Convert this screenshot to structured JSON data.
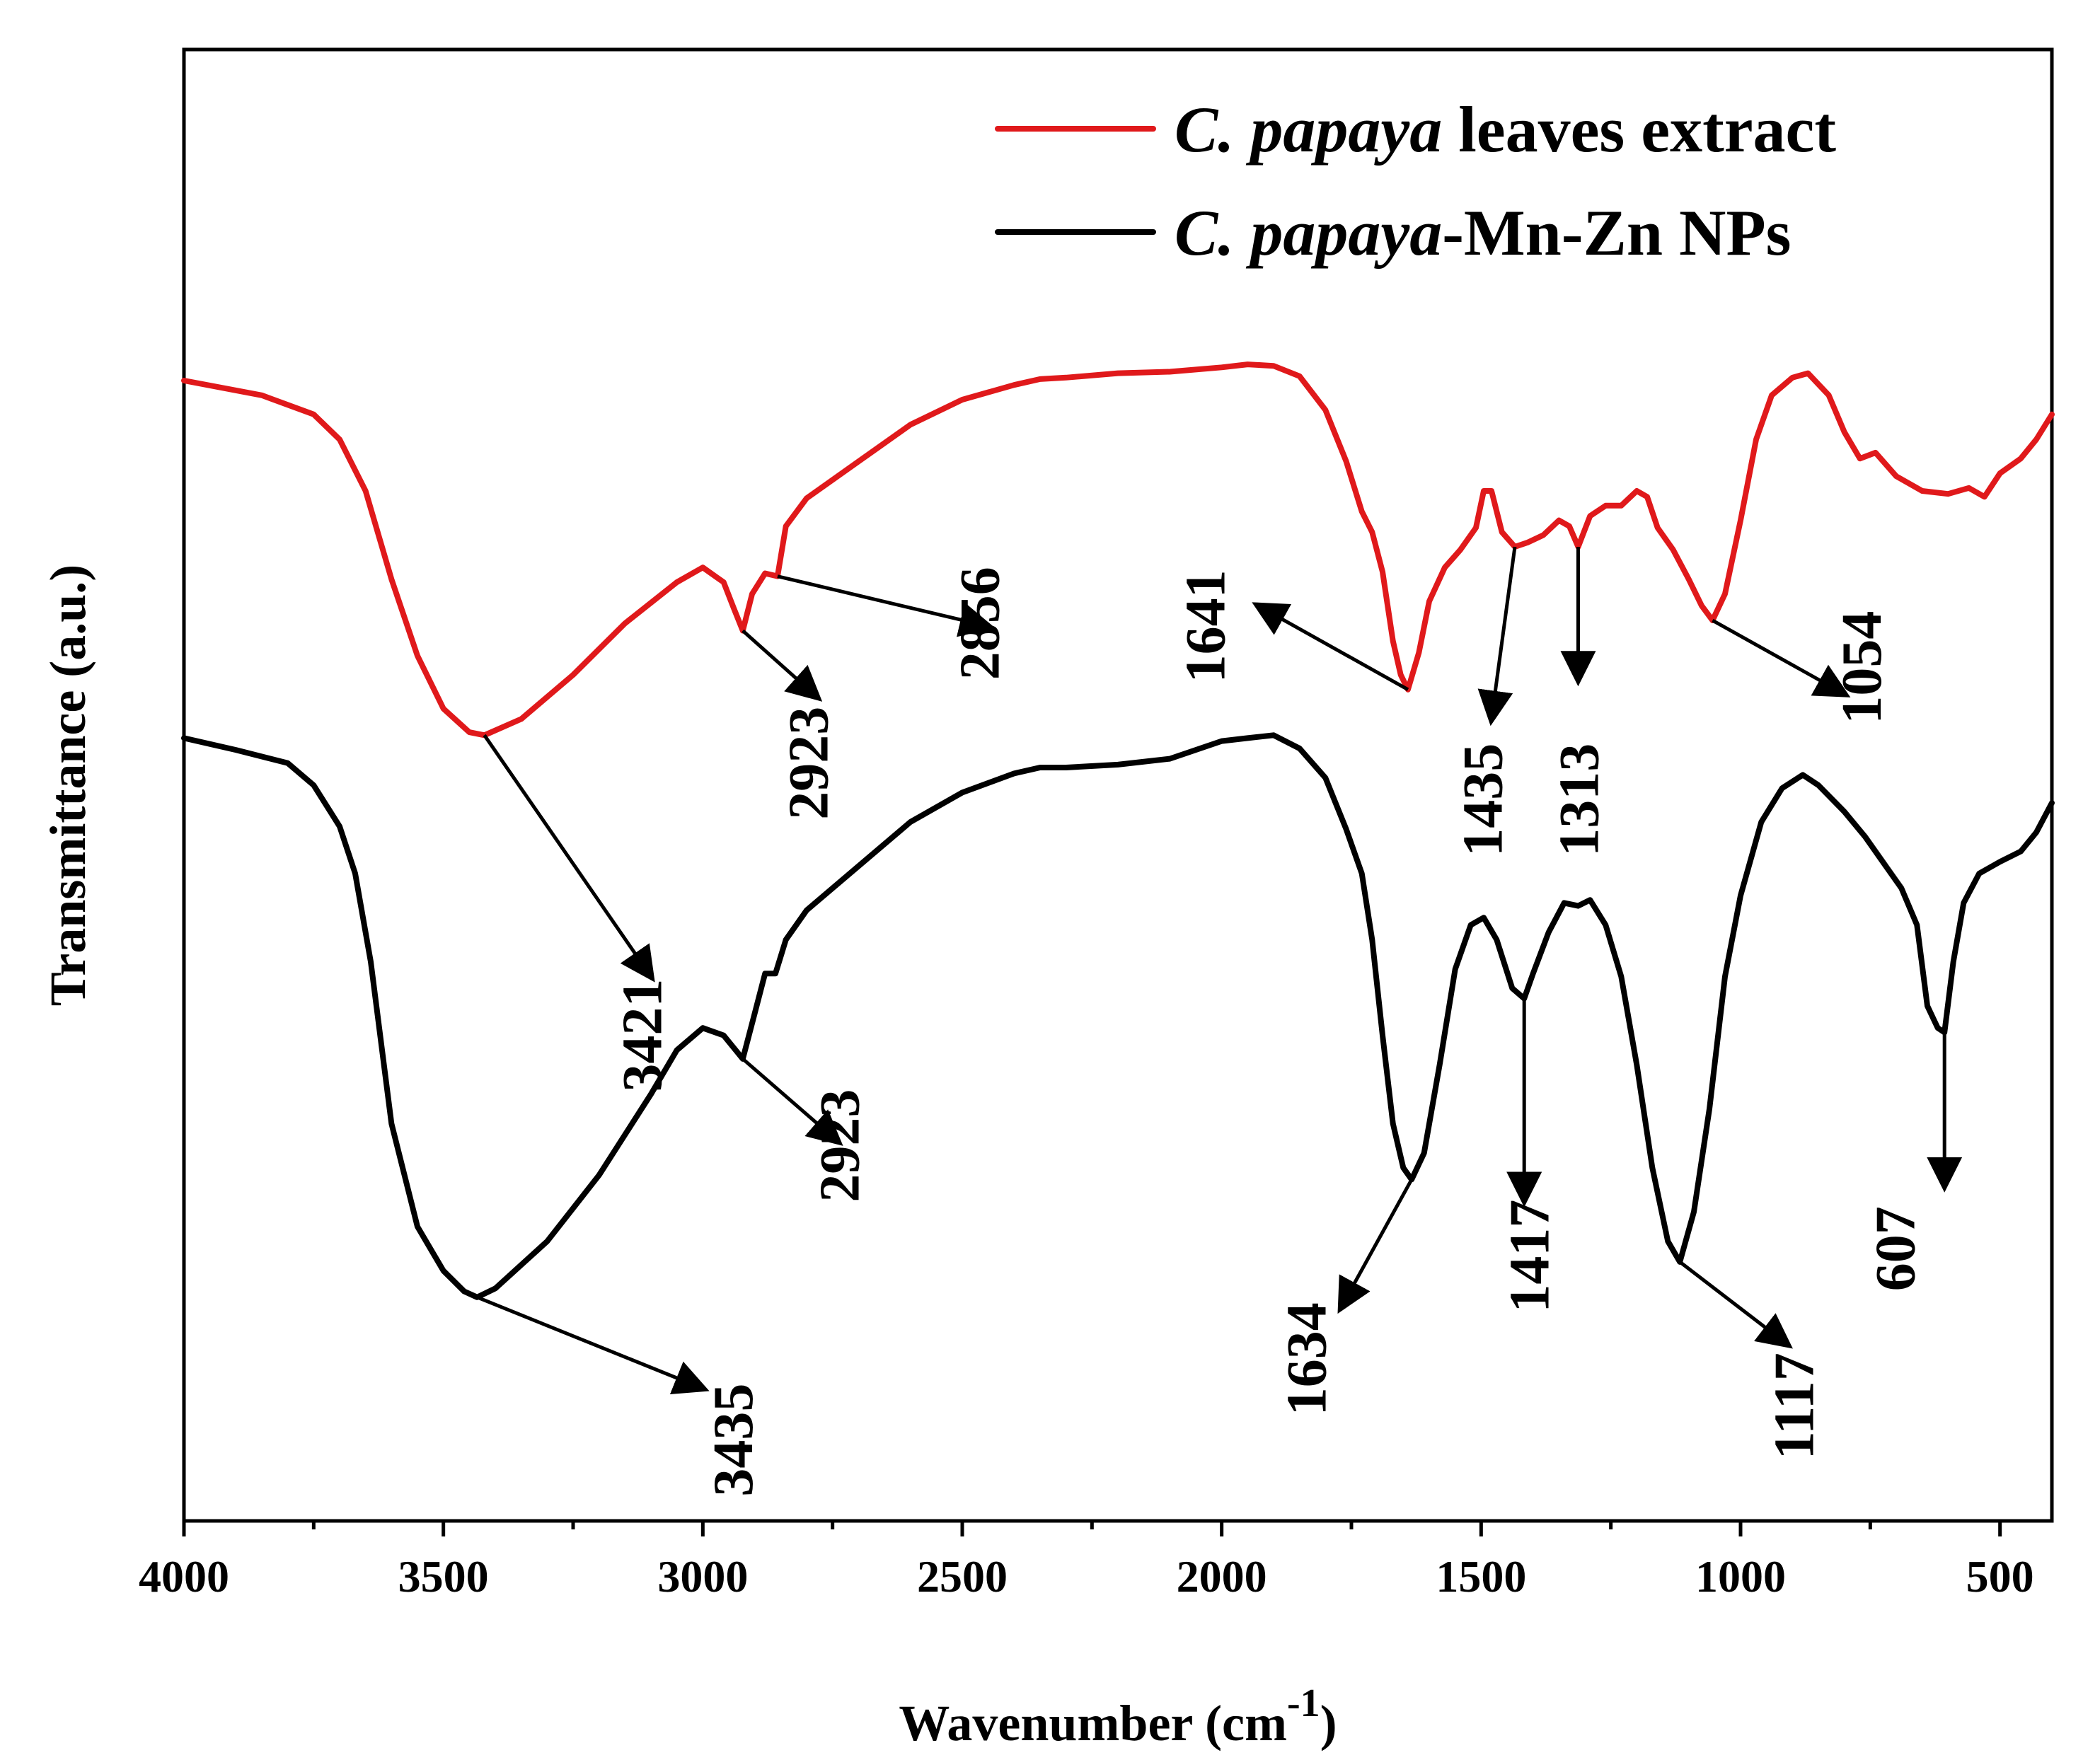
{
  "chart_data": {
    "type": "line",
    "title": "",
    "xlabel_main": "Wavenumber (cm",
    "xlabel_sup": "-1",
    "xlabel_close": ")",
    "ylabel": "Transmittance (a.u.)",
    "xlim": [
      4000,
      400
    ],
    "xticks": [
      "4000",
      "3500",
      "3000",
      "2500",
      "2000",
      "1500",
      "1000",
      "500"
    ],
    "legend": [
      {
        "italic": "C. papaya",
        "rest": " leaves extract",
        "color": "#e0191b"
      },
      {
        "italic": "C. papaya",
        "rest": "-Mn-Zn NPs",
        "color": "#000000"
      }
    ],
    "series": [
      {
        "name": "C. papaya leaves extract",
        "color": "#e0191b",
        "points": [
          [
            4000,
            0.775
          ],
          [
            3850,
            0.765
          ],
          [
            3750,
            0.752
          ],
          [
            3700,
            0.735
          ],
          [
            3650,
            0.7
          ],
          [
            3600,
            0.64
          ],
          [
            3550,
            0.588
          ],
          [
            3500,
            0.552
          ],
          [
            3450,
            0.536
          ],
          [
            3421,
            0.534
          ],
          [
            3350,
            0.545
          ],
          [
            3250,
            0.575
          ],
          [
            3150,
            0.61
          ],
          [
            3050,
            0.638
          ],
          [
            3000,
            0.648
          ],
          [
            2960,
            0.638
          ],
          [
            2940,
            0.62
          ],
          [
            2923,
            0.605
          ],
          [
            2905,
            0.63
          ],
          [
            2880,
            0.644
          ],
          [
            2856,
            0.642
          ],
          [
            2840,
            0.676
          ],
          [
            2800,
            0.695
          ],
          [
            2700,
            0.72
          ],
          [
            2600,
            0.745
          ],
          [
            2500,
            0.762
          ],
          [
            2400,
            0.772
          ],
          [
            2350,
            0.776
          ],
          [
            2300,
            0.777
          ],
          [
            2200,
            0.78
          ],
          [
            2100,
            0.781
          ],
          [
            2000,
            0.784
          ],
          [
            1950,
            0.786
          ],
          [
            1900,
            0.785
          ],
          [
            1850,
            0.778
          ],
          [
            1800,
            0.755
          ],
          [
            1760,
            0.72
          ],
          [
            1730,
            0.686
          ],
          [
            1710,
            0.672
          ],
          [
            1690,
            0.645
          ],
          [
            1670,
            0.598
          ],
          [
            1655,
            0.575
          ],
          [
            1641,
            0.565
          ],
          [
            1620,
            0.59
          ],
          [
            1600,
            0.625
          ],
          [
            1570,
            0.648
          ],
          [
            1540,
            0.66
          ],
          [
            1510,
            0.675
          ],
          [
            1495,
            0.7
          ],
          [
            1480,
            0.7
          ],
          [
            1460,
            0.672
          ],
          [
            1435,
            0.662
          ],
          [
            1410,
            0.665
          ],
          [
            1380,
            0.67
          ],
          [
            1350,
            0.68
          ],
          [
            1330,
            0.676
          ],
          [
            1313,
            0.662
          ],
          [
            1290,
            0.683
          ],
          [
            1260,
            0.69
          ],
          [
            1230,
            0.69
          ],
          [
            1200,
            0.7
          ],
          [
            1180,
            0.696
          ],
          [
            1160,
            0.675
          ],
          [
            1130,
            0.66
          ],
          [
            1100,
            0.64
          ],
          [
            1075,
            0.622
          ],
          [
            1054,
            0.612
          ],
          [
            1030,
            0.63
          ],
          [
            1000,
            0.68
          ],
          [
            970,
            0.735
          ],
          [
            940,
            0.765
          ],
          [
            900,
            0.777
          ],
          [
            870,
            0.78
          ],
          [
            830,
            0.765
          ],
          [
            800,
            0.74
          ],
          [
            770,
            0.722
          ],
          [
            740,
            0.726
          ],
          [
            700,
            0.71
          ],
          [
            650,
            0.7
          ],
          [
            600,
            0.698
          ],
          [
            560,
            0.702
          ],
          [
            530,
            0.696
          ],
          [
            500,
            0.712
          ],
          [
            460,
            0.722
          ],
          [
            430,
            0.735
          ],
          [
            400,
            0.752
          ]
        ]
      },
      {
        "name": "C. papaya-Mn-Zn NPs",
        "color": "#000000",
        "points": [
          [
            4000,
            0.532
          ],
          [
            3900,
            0.524
          ],
          [
            3800,
            0.515
          ],
          [
            3750,
            0.5
          ],
          [
            3700,
            0.472
          ],
          [
            3670,
            0.44
          ],
          [
            3640,
            0.38
          ],
          [
            3600,
            0.27
          ],
          [
            3550,
            0.2
          ],
          [
            3500,
            0.17
          ],
          [
            3460,
            0.156
          ],
          [
            3435,
            0.152
          ],
          [
            3400,
            0.158
          ],
          [
            3300,
            0.19
          ],
          [
            3200,
            0.235
          ],
          [
            3100,
            0.29
          ],
          [
            3050,
            0.32
          ],
          [
            3000,
            0.335
          ],
          [
            2960,
            0.33
          ],
          [
            2930,
            0.317
          ],
          [
            2923,
            0.314
          ],
          [
            2900,
            0.345
          ],
          [
            2880,
            0.372
          ],
          [
            2860,
            0.372
          ],
          [
            2840,
            0.395
          ],
          [
            2800,
            0.415
          ],
          [
            2700,
            0.445
          ],
          [
            2600,
            0.475
          ],
          [
            2500,
            0.495
          ],
          [
            2400,
            0.508
          ],
          [
            2350,
            0.512
          ],
          [
            2300,
            0.512
          ],
          [
            2200,
            0.514
          ],
          [
            2100,
            0.518
          ],
          [
            2050,
            0.524
          ],
          [
            2000,
            0.53
          ],
          [
            1950,
            0.532
          ],
          [
            1900,
            0.534
          ],
          [
            1850,
            0.525
          ],
          [
            1800,
            0.505
          ],
          [
            1760,
            0.47
          ],
          [
            1730,
            0.44
          ],
          [
            1710,
            0.395
          ],
          [
            1690,
            0.33
          ],
          [
            1670,
            0.27
          ],
          [
            1650,
            0.24
          ],
          [
            1634,
            0.232
          ],
          [
            1610,
            0.25
          ],
          [
            1580,
            0.31
          ],
          [
            1550,
            0.375
          ],
          [
            1520,
            0.405
          ],
          [
            1495,
            0.41
          ],
          [
            1470,
            0.395
          ],
          [
            1440,
            0.362
          ],
          [
            1417,
            0.355
          ],
          [
            1400,
            0.372
          ],
          [
            1370,
            0.4
          ],
          [
            1340,
            0.42
          ],
          [
            1313,
            0.418
          ],
          [
            1290,
            0.422
          ],
          [
            1260,
            0.405
          ],
          [
            1230,
            0.37
          ],
          [
            1200,
            0.31
          ],
          [
            1170,
            0.24
          ],
          [
            1140,
            0.19
          ],
          [
            1117,
            0.176
          ],
          [
            1090,
            0.21
          ],
          [
            1060,
            0.28
          ],
          [
            1030,
            0.37
          ],
          [
            1000,
            0.425
          ],
          [
            960,
            0.475
          ],
          [
            920,
            0.498
          ],
          [
            880,
            0.507
          ],
          [
            850,
            0.5
          ],
          [
            800,
            0.482
          ],
          [
            760,
            0.465
          ],
          [
            720,
            0.445
          ],
          [
            690,
            0.43
          ],
          [
            660,
            0.405
          ],
          [
            640,
            0.35
          ],
          [
            620,
            0.335
          ],
          [
            607,
            0.332
          ],
          [
            590,
            0.38
          ],
          [
            570,
            0.42
          ],
          [
            540,
            0.44
          ],
          [
            500,
            0.448
          ],
          [
            460,
            0.455
          ],
          [
            430,
            0.468
          ],
          [
            400,
            0.488
          ]
        ]
      }
    ],
    "peak_labels": [
      {
        "text": "3421",
        "tip": [
          3421,
          0.534
        ],
        "tail": [
          3100,
          0.37
        ],
        "rot_cx_wn": 3080,
        "rot_cy": 0.33
      },
      {
        "text": "2923",
        "tip": [
          2923,
          0.605
        ],
        "tail": [
          2780,
          0.56
        ],
        "rot_cx_wn": 2760,
        "rot_cy": 0.515
      },
      {
        "text": "2856",
        "tip": [
          2856,
          0.642
        ],
        "tail": [
          2450,
          0.608
        ],
        "rot_cx_wn": 2430,
        "rot_cy": 0.61
      },
      {
        "text": "1641",
        "tip": [
          1641,
          0.565
        ],
        "tail": [
          1930,
          0.622
        ],
        "rot_cx_wn": 1995,
        "rot_cy": 0.608
      },
      {
        "text": "1435",
        "tip": [
          1435,
          0.662
        ],
        "tail": [
          1480,
          0.545
        ],
        "rot_cx_wn": 1460,
        "rot_cy": 0.49
      },
      {
        "text": "1313",
        "tip": [
          1313,
          0.662
        ],
        "tail": [
          1313,
          0.572
        ],
        "rot_cx_wn": 1275,
        "rot_cy": 0.49
      },
      {
        "text": "1054",
        "tip": [
          1054,
          0.612
        ],
        "tail": [
          800,
          0.562
        ],
        "rot_cx_wn": 730,
        "rot_cy": 0.58
      },
      {
        "text": "3435",
        "tip": [
          3435,
          0.152
        ],
        "tail": [
          3000,
          0.09
        ],
        "rot_cx_wn": 2905,
        "rot_cy": 0.055
      },
      {
        "text": "2923",
        "tip": [
          2923,
          0.314
        ],
        "tail": [
          2740,
          0.258
        ],
        "rot_cx_wn": 2700,
        "rot_cy": 0.255
      },
      {
        "text": "1634",
        "tip": [
          1634,
          0.232
        ],
        "tail": [
          1770,
          0.145
        ],
        "rot_cx_wn": 1800,
        "rot_cy": 0.11
      },
      {
        "text": "1417",
        "tip": [
          1417,
          0.355
        ],
        "tail": [
          1417,
          0.218
        ],
        "rot_cx_wn": 1370,
        "rot_cy": 0.18
      },
      {
        "text": "1117",
        "tip": [
          1117,
          0.176
        ],
        "tail": [
          910,
          0.12
        ],
        "rot_cx_wn": 860,
        "rot_cy": 0.078
      },
      {
        "text": "607",
        "tip": [
          607,
          0.332
        ],
        "tail": [
          607,
          0.228
        ],
        "rot_cx_wn": 665,
        "rot_cy": 0.185
      }
    ]
  }
}
